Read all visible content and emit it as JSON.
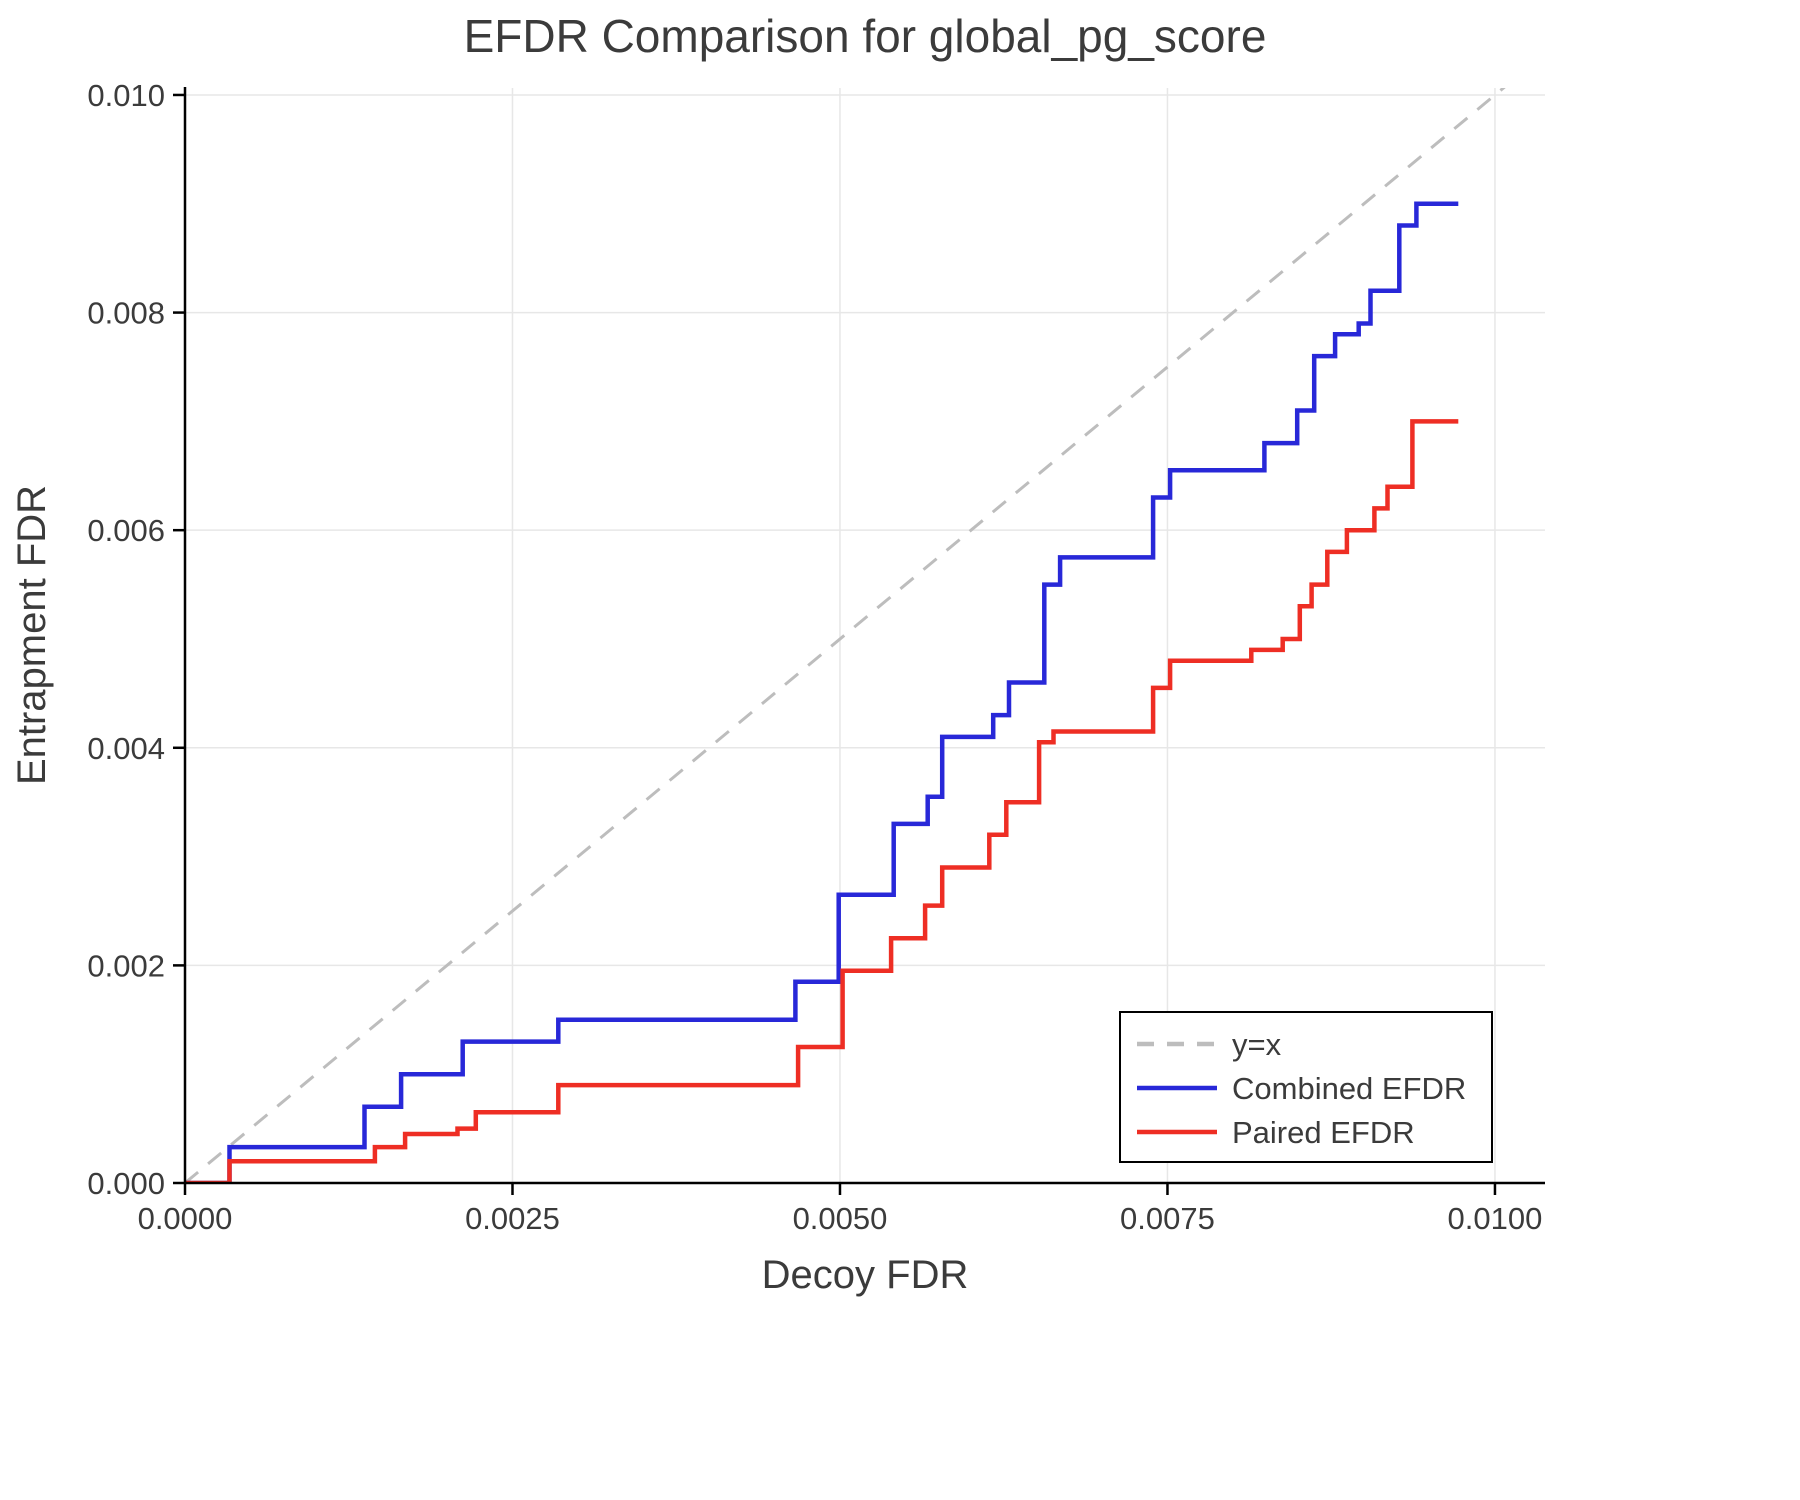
{
  "chart_data": {
    "type": "line",
    "subtype": "step",
    "title": "EFDR Comparison for global_pg_score",
    "xlabel": "Decoy FDR",
    "ylabel": "Entrapment FDR",
    "xlim": [
      0,
      0.010382
    ],
    "ylim": [
      0,
      0.010064
    ],
    "grid": true,
    "colors": {
      "grid": "#e7e7e7",
      "spine": "#000000",
      "text": "#3b3b3b",
      "background": "#ffffff",
      "identity": "#bdbdbd",
      "combined": "#2828d8",
      "paired": "#ee2e24"
    },
    "x_ticks": [
      {
        "v": 0.0,
        "label": "0.0000"
      },
      {
        "v": 0.0025,
        "label": "0.0025"
      },
      {
        "v": 0.005,
        "label": "0.0050"
      },
      {
        "v": 0.0075,
        "label": "0.0075"
      },
      {
        "v": 0.01,
        "label": "0.0100"
      }
    ],
    "y_ticks": [
      {
        "v": 0.0,
        "label": "0.000"
      },
      {
        "v": 0.002,
        "label": "0.002"
      },
      {
        "v": 0.004,
        "label": "0.004"
      },
      {
        "v": 0.006,
        "label": "0.006"
      },
      {
        "v": 0.008,
        "label": "0.008"
      },
      {
        "v": 0.01,
        "label": "0.010"
      }
    ],
    "legend": {
      "position": "lower right",
      "entries": [
        {
          "label": "y=x",
          "color": "#bdbdbd",
          "style": "dashed"
        },
        {
          "label": "Combined EFDR",
          "color": "#2828d8",
          "style": "solid"
        },
        {
          "label": "Paired EFDR",
          "color": "#ee2e24",
          "style": "solid"
        }
      ]
    },
    "series": [
      {
        "name": "y=x",
        "slug": "identity-line",
        "style": "dashed",
        "color": "#bdbdbd",
        "points": [
          [
            0.0,
            0.0
          ],
          [
            0.0102,
            0.0102
          ]
        ]
      },
      {
        "name": "Combined EFDR",
        "slug": "combined-efdr-line",
        "style": "step",
        "color": "#2828d8",
        "x_end": 0.00972,
        "points": [
          [
            0.0,
            0.0
          ],
          [
            0.00034,
            0.00033
          ],
          [
            0.00137,
            0.0007
          ],
          [
            0.00165,
            0.001
          ],
          [
            0.00212,
            0.0013
          ],
          [
            0.00285,
            0.0015
          ],
          [
            0.00466,
            0.00185
          ],
          [
            0.00499,
            0.00265
          ],
          [
            0.00541,
            0.0033
          ],
          [
            0.00567,
            0.00355
          ],
          [
            0.00578,
            0.0041
          ],
          [
            0.00617,
            0.0043
          ],
          [
            0.00629,
            0.0046
          ],
          [
            0.00656,
            0.0055
          ],
          [
            0.00668,
            0.00575
          ],
          [
            0.00739,
            0.0063
          ],
          [
            0.00752,
            0.00655
          ],
          [
            0.00824,
            0.0068
          ],
          [
            0.00849,
            0.0071
          ],
          [
            0.00862,
            0.0076
          ],
          [
            0.00878,
            0.0078
          ],
          [
            0.00896,
            0.0079
          ],
          [
            0.00905,
            0.0082
          ],
          [
            0.00927,
            0.0088
          ],
          [
            0.0094,
            0.009
          ]
        ]
      },
      {
        "name": "Paired EFDR",
        "slug": "paired-efdr-line",
        "style": "step",
        "color": "#ee2e24",
        "x_end": 0.00972,
        "points": [
          [
            0.0,
            0.0
          ],
          [
            0.00034,
            0.0002
          ],
          [
            0.00145,
            0.00033
          ],
          [
            0.00168,
            0.00045
          ],
          [
            0.00208,
            0.0005
          ],
          [
            0.00222,
            0.00065
          ],
          [
            0.00285,
            0.0009
          ],
          [
            0.00468,
            0.00125
          ],
          [
            0.00502,
            0.00195
          ],
          [
            0.00539,
            0.00225
          ],
          [
            0.00565,
            0.00255
          ],
          [
            0.00578,
            0.0029
          ],
          [
            0.00614,
            0.0032
          ],
          [
            0.00627,
            0.0035
          ],
          [
            0.00652,
            0.00405
          ],
          [
            0.00663,
            0.00415
          ],
          [
            0.00739,
            0.00455
          ],
          [
            0.00752,
            0.0048
          ],
          [
            0.00814,
            0.0049
          ],
          [
            0.00838,
            0.005
          ],
          [
            0.00851,
            0.0053
          ],
          [
            0.0086,
            0.0055
          ],
          [
            0.00872,
            0.0058
          ],
          [
            0.00887,
            0.006
          ],
          [
            0.00908,
            0.0062
          ],
          [
            0.00918,
            0.0064
          ],
          [
            0.00937,
            0.007
          ]
        ]
      }
    ]
  }
}
